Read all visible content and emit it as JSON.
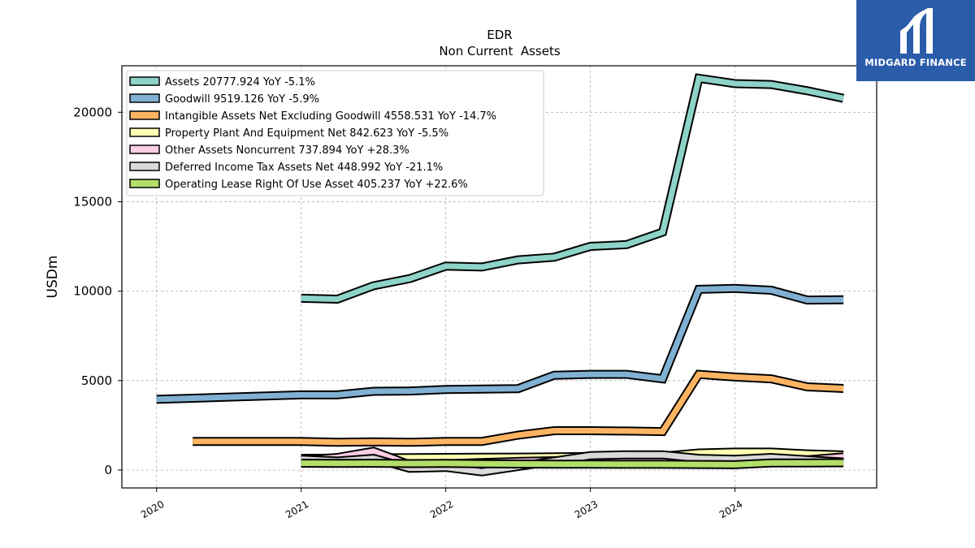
{
  "chart_data": {
    "type": "line",
    "title": "EDR",
    "subtitle": "Non Current  Assets",
    "ylabel": "USDm",
    "xlabel": "",
    "ylim": [
      -1000,
      22600
    ],
    "xlim": [
      2019.76,
      2024.98
    ],
    "x_ticks": [
      "2020",
      "2021",
      "2022",
      "2023",
      "2024"
    ],
    "y_ticks": [
      "0",
      "5000",
      "10000",
      "15000",
      "20000"
    ],
    "grid": true,
    "legend_position": "top-left",
    "series": [
      {
        "name": "Assets  20777.924 YoY -5.1%",
        "color": "#8dd3c7",
        "points": [
          [
            2021.0,
            9600
          ],
          [
            2021.25,
            9550
          ],
          [
            2021.5,
            10300
          ],
          [
            2021.75,
            10700
          ],
          [
            2022.0,
            11400
          ],
          [
            2022.25,
            11350
          ],
          [
            2022.5,
            11750
          ],
          [
            2022.75,
            11900
          ],
          [
            2023.0,
            12500
          ],
          [
            2023.25,
            12600
          ],
          [
            2023.5,
            13300
          ],
          [
            2023.75,
            21900
          ],
          [
            2024.0,
            21600
          ],
          [
            2024.25,
            21550
          ],
          [
            2024.5,
            21200
          ],
          [
            2024.75,
            20778
          ]
        ]
      },
      {
        "name": "Goodwill  9519.126 YoY -5.9%",
        "color": "#80b1d3",
        "points": [
          [
            2020.0,
            3950
          ],
          [
            2021.0,
            4200
          ],
          [
            2021.25,
            4200
          ],
          [
            2021.5,
            4400
          ],
          [
            2021.75,
            4420
          ],
          [
            2022.0,
            4500
          ],
          [
            2022.25,
            4530
          ],
          [
            2022.5,
            4550
          ],
          [
            2022.75,
            5300
          ],
          [
            2023.0,
            5350
          ],
          [
            2023.25,
            5350
          ],
          [
            2023.5,
            5100
          ],
          [
            2023.75,
            10100
          ],
          [
            2024.0,
            10150
          ],
          [
            2024.25,
            10050
          ],
          [
            2024.5,
            9500
          ],
          [
            2024.75,
            9519
          ]
        ]
      },
      {
        "name": "Intangible Assets Net Excluding Goodwill  4558.531 YoY -14.7%",
        "color": "#fdb462",
        "points": [
          [
            2020.25,
            1600
          ],
          [
            2021.0,
            1600
          ],
          [
            2021.25,
            1550
          ],
          [
            2021.5,
            1580
          ],
          [
            2021.75,
            1550
          ],
          [
            2022.0,
            1600
          ],
          [
            2022.25,
            1600
          ],
          [
            2022.5,
            1950
          ],
          [
            2022.75,
            2200
          ],
          [
            2023.0,
            2200
          ],
          [
            2023.25,
            2180
          ],
          [
            2023.5,
            2150
          ],
          [
            2023.75,
            5350
          ],
          [
            2024.0,
            5200
          ],
          [
            2024.25,
            5100
          ],
          [
            2024.5,
            4650
          ],
          [
            2024.75,
            4559
          ]
        ]
      },
      {
        "name": "Property Plant And Equipment Net  842.623 YoY -5.5%",
        "color": "#ffffb3",
        "points": [
          [
            2021.0,
            650
          ],
          [
            2021.25,
            660
          ],
          [
            2021.5,
            680
          ],
          [
            2021.75,
            690
          ],
          [
            2022.0,
            700
          ],
          [
            2022.25,
            710
          ],
          [
            2022.5,
            720
          ],
          [
            2022.75,
            740
          ],
          [
            2023.0,
            760
          ],
          [
            2023.25,
            770
          ],
          [
            2023.5,
            780
          ],
          [
            2023.75,
            950
          ],
          [
            2024.0,
            1000
          ],
          [
            2024.25,
            1000
          ],
          [
            2024.5,
            900
          ],
          [
            2024.75,
            843
          ]
        ]
      },
      {
        "name": "Other Assets Noncurrent  737.894 YoY +28.3%",
        "color": "#fccde5",
        "points": [
          [
            2021.0,
            550
          ],
          [
            2021.25,
            700
          ],
          [
            2021.5,
            1050
          ],
          [
            2021.75,
            300
          ],
          [
            2022.0,
            350
          ],
          [
            2022.25,
            420
          ],
          [
            2022.5,
            480
          ],
          [
            2022.75,
            520
          ],
          [
            2023.0,
            560
          ],
          [
            2023.25,
            580
          ],
          [
            2023.5,
            600
          ],
          [
            2023.75,
            620
          ],
          [
            2024.0,
            580
          ],
          [
            2024.25,
            600
          ],
          [
            2024.5,
            575
          ],
          [
            2024.75,
            738
          ]
        ]
      },
      {
        "name": "Deferred Income Tax Assets Net  448.992 YoY -21.1%",
        "color": "#d9d9d9",
        "points": [
          [
            2021.0,
            600
          ],
          [
            2021.25,
            500
          ],
          [
            2021.5,
            650
          ],
          [
            2021.75,
            100
          ],
          [
            2022.0,
            150
          ],
          [
            2022.25,
            -100
          ],
          [
            2022.5,
            200
          ],
          [
            2022.75,
            500
          ],
          [
            2023.0,
            800
          ],
          [
            2023.25,
            850
          ],
          [
            2023.5,
            850
          ],
          [
            2023.75,
            650
          ],
          [
            2024.0,
            600
          ],
          [
            2024.25,
            700
          ],
          [
            2024.5,
            570
          ],
          [
            2024.75,
            449
          ]
        ]
      },
      {
        "name": "Operating Lease Right Of Use Asset  405.237 YoY +22.6%",
        "color": "#b3de69",
        "points": [
          [
            2021.0,
            380
          ],
          [
            2021.25,
            370
          ],
          [
            2021.5,
            380
          ],
          [
            2021.75,
            360
          ],
          [
            2022.0,
            370
          ],
          [
            2022.25,
            350
          ],
          [
            2022.5,
            340
          ],
          [
            2022.75,
            330
          ],
          [
            2023.0,
            330
          ],
          [
            2023.25,
            320
          ],
          [
            2023.5,
            320
          ],
          [
            2023.75,
            310
          ],
          [
            2024.0,
            300
          ],
          [
            2024.25,
            400
          ],
          [
            2024.5,
            400
          ],
          [
            2024.75,
            405
          ]
        ]
      }
    ]
  },
  "logo": {
    "text": "MIDGARD FINANCE",
    "background": "#2a5caa"
  }
}
